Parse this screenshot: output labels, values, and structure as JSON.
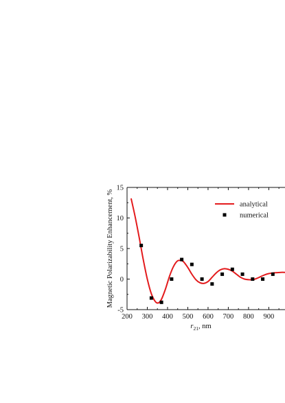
{
  "chart_data": {
    "type": "line",
    "title": "",
    "xlabel": "r",
    "xlabel_subscript": "21",
    "xlabel_unit": ", nm",
    "ylabel": "Magnetic Polarizability Enhancement, %",
    "xlim": [
      200,
      980
    ],
    "ylim": [
      -5,
      15
    ],
    "x_ticks": [
      200,
      300,
      400,
      500,
      600,
      700,
      800,
      900
    ],
    "y_ticks": [
      -5,
      0,
      5,
      10,
      15
    ],
    "grid": false,
    "legend_position": "top-right",
    "series": [
      {
        "name": "analytical",
        "style": "line",
        "color": "#e31a1c",
        "x": [
          220,
          240,
          260,
          280,
          300,
          320,
          340,
          355,
          370,
          390,
          410,
          430,
          450,
          470,
          480,
          500,
          520,
          540,
          560,
          580,
          600,
          620,
          640,
          660,
          680,
          700,
          720,
          740,
          760,
          780,
          800,
          820,
          840,
          860,
          880,
          900,
          920,
          940,
          960,
          980
        ],
        "y": [
          13.2,
          10.2,
          6.8,
          3.2,
          0.0,
          -2.4,
          -3.7,
          -3.9,
          -3.3,
          -1.6,
          0.5,
          2.1,
          3.0,
          3.0,
          2.8,
          1.9,
          0.8,
          -0.1,
          -0.6,
          -0.7,
          -0.4,
          0.3,
          1.0,
          1.5,
          1.7,
          1.6,
          1.3,
          0.8,
          0.3,
          0.0,
          -0.1,
          -0.1,
          0.1,
          0.4,
          0.7,
          0.9,
          1.0,
          1.05,
          1.1,
          1.1
        ]
      },
      {
        "name": "numerical",
        "style": "points",
        "color": "#000000",
        "x": [
          270,
          320,
          370,
          420,
          470,
          520,
          570,
          620,
          670,
          720,
          770,
          820,
          870,
          920
        ],
        "y": [
          5.5,
          -3.1,
          -3.8,
          0.0,
          3.2,
          2.4,
          0.0,
          -0.8,
          0.8,
          1.6,
          0.8,
          0.0,
          0.0,
          0.8
        ]
      }
    ]
  }
}
